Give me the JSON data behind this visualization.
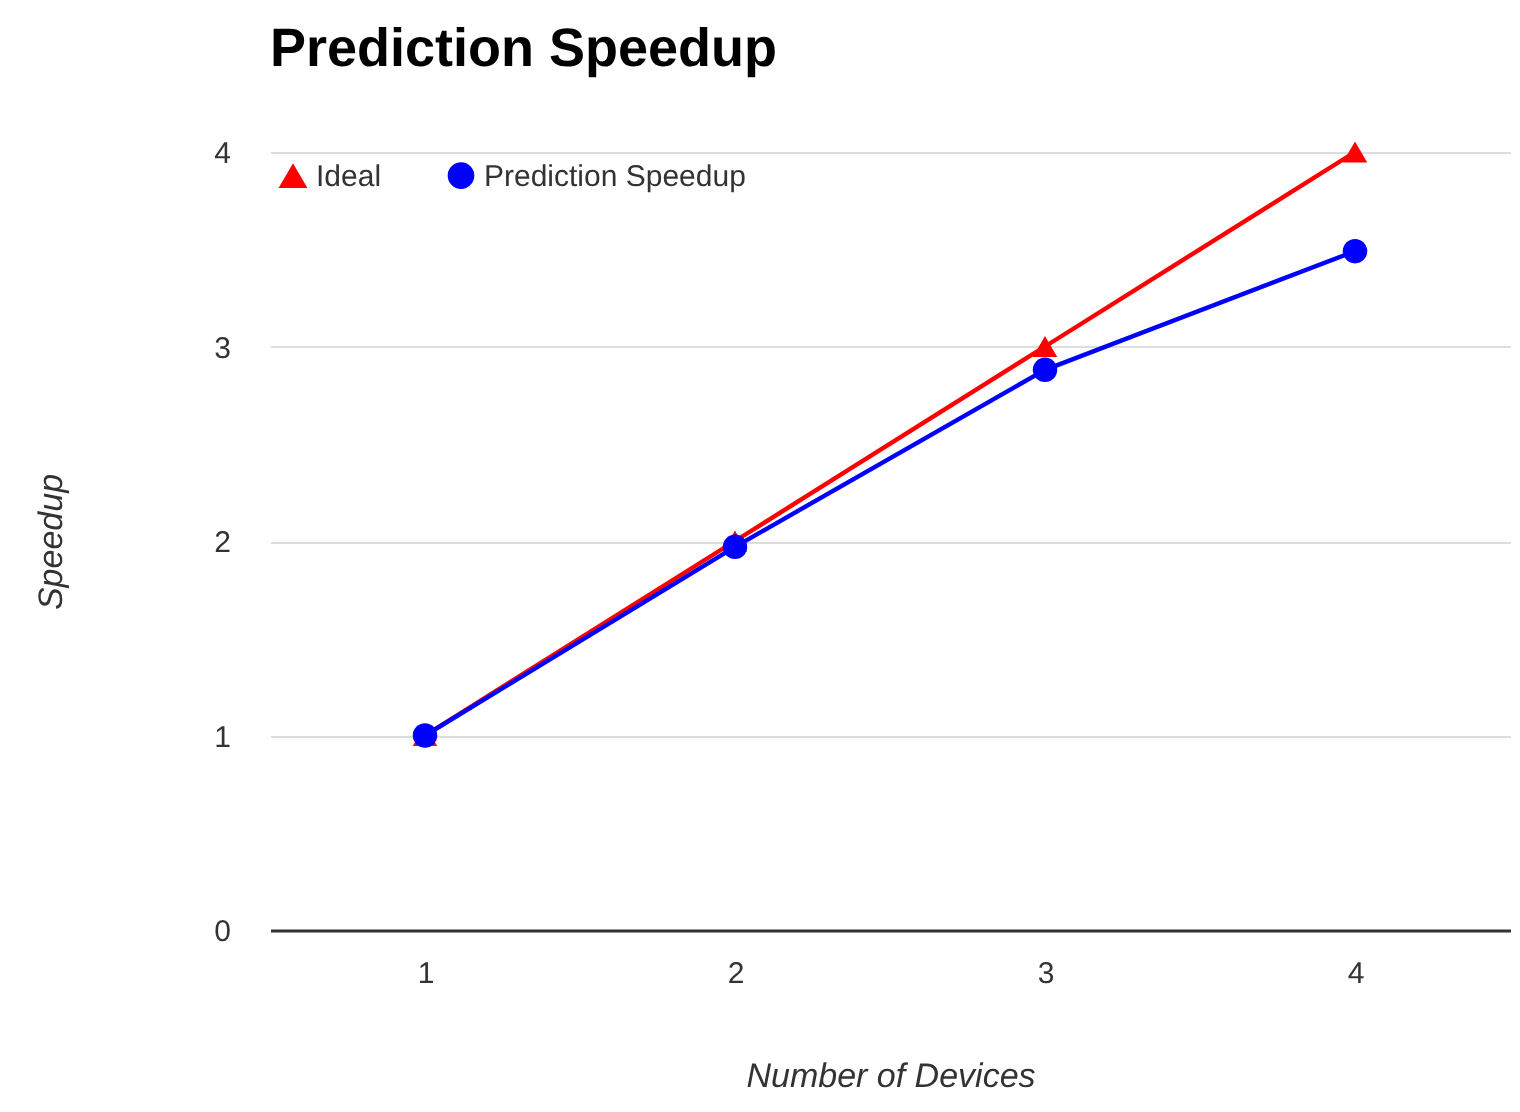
{
  "chart_data": {
    "type": "line",
    "title": "Prediction Speedup",
    "xlabel": "Number of Devices",
    "ylabel": "Speedup",
    "categories": [
      "1",
      "2",
      "3",
      "4"
    ],
    "series": [
      {
        "name": "Ideal",
        "color": "#ff0000",
        "marker": "triangle",
        "values": [
          1,
          2,
          3,
          4
        ]
      },
      {
        "name": "Prediction Speedup",
        "color": "#0000ff",
        "marker": "circle",
        "values": [
          1,
          1.97,
          2.88,
          3.49
        ]
      }
    ],
    "ylim": [
      0,
      4
    ],
    "yticks": [
      0,
      1,
      2,
      3,
      4
    ],
    "grid": "y",
    "legend": "top left"
  }
}
